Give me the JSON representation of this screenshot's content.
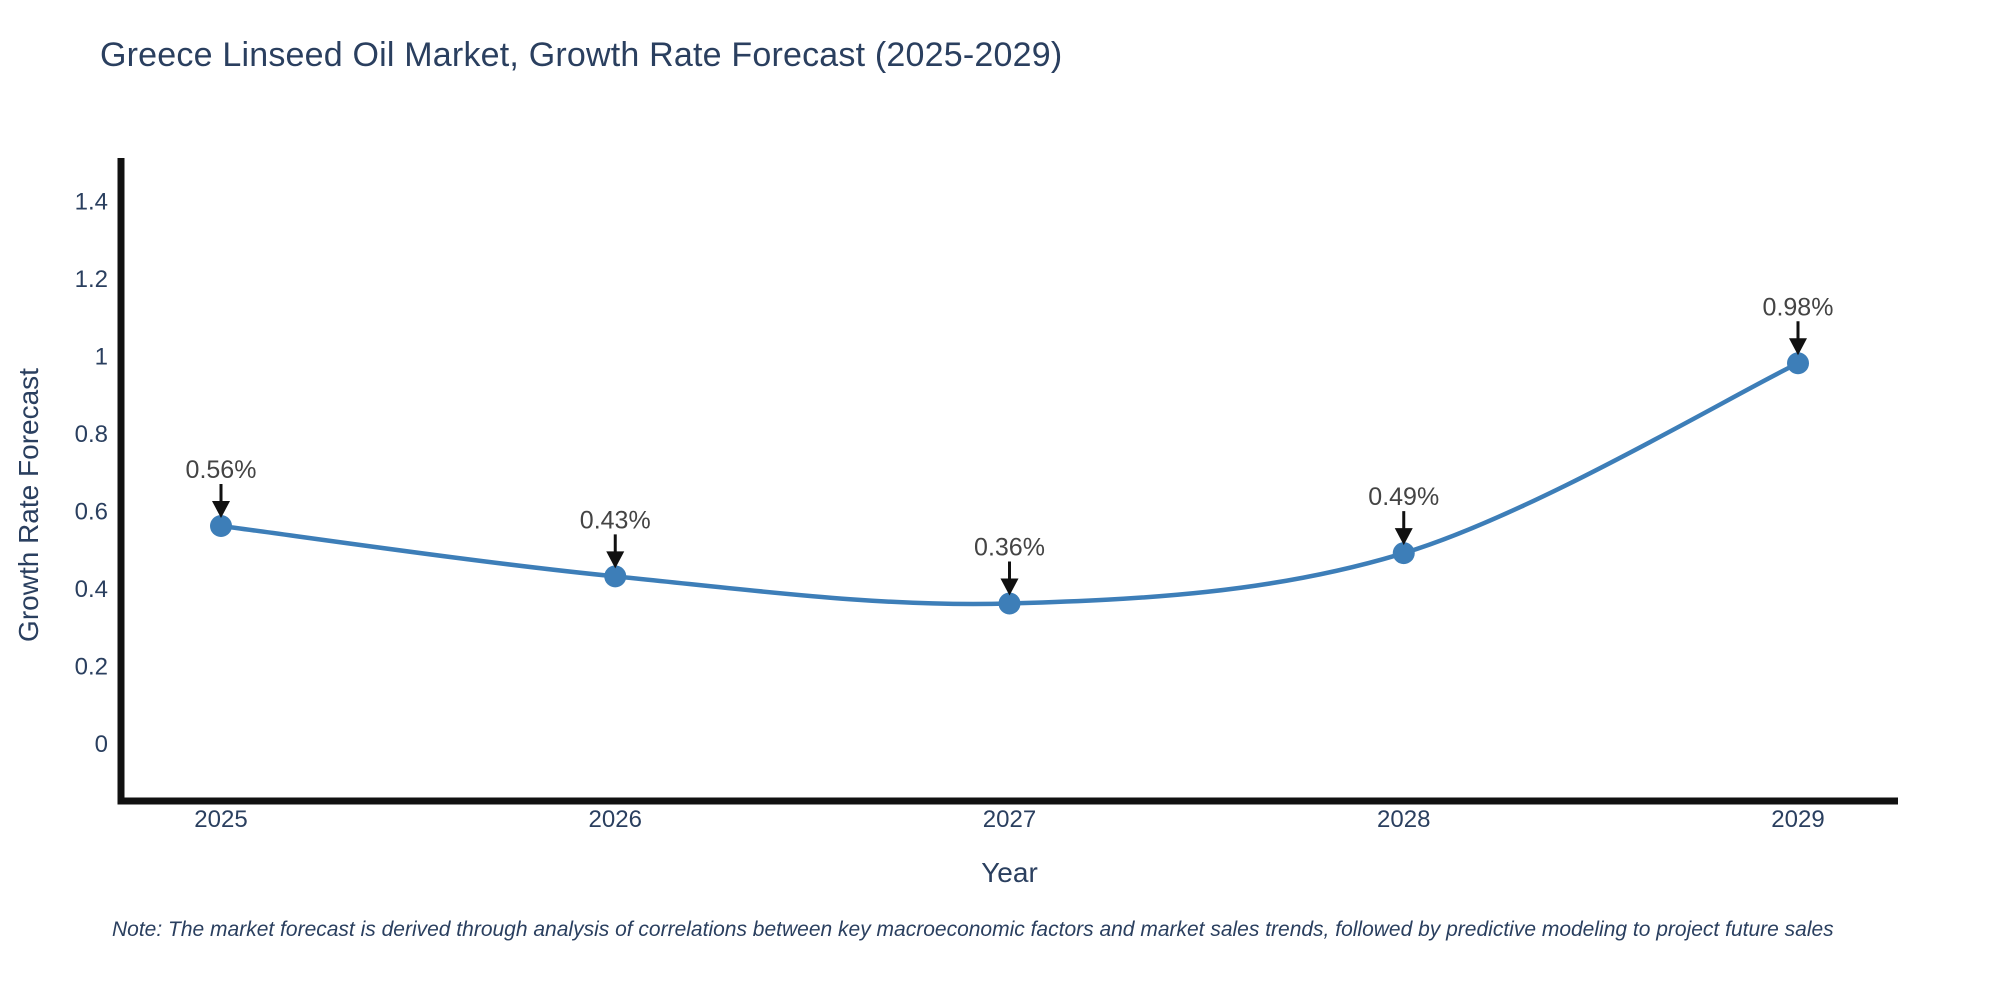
{
  "title": "Greece Linseed Oil Market, Growth Rate Forecast (2025-2029)",
  "note": "Note: The market forecast is derived through analysis of correlations between key macroeconomic factors and market sales trends, followed by predictive modeling to project future sales",
  "chart_data": {
    "type": "line",
    "line_shape": "spline",
    "categories": [
      "2025",
      "2026",
      "2027",
      "2028",
      "2029"
    ],
    "values": [
      0.56,
      0.43,
      0.36,
      0.49,
      0.98
    ],
    "point_labels": [
      "0.56%",
      "0.43%",
      "0.36%",
      "0.49%",
      "0.98%"
    ],
    "title": "Greece Linseed Oil Market, Growth Rate Forecast (2025-2029)",
    "xlabel": "Year",
    "ylabel": "Growth Rate Forecast",
    "ylim": [
      0,
      1.4
    ],
    "yticks": [
      0,
      0.2,
      0.4,
      0.6,
      0.8,
      1,
      1.2,
      1.4
    ],
    "ytick_labels": [
      "0",
      "0.2",
      "0.4",
      "0.6",
      "0.8",
      "1",
      "1.2",
      "1.4"
    ],
    "grid": false,
    "legend_position": "none",
    "markers": true,
    "annotations_arrows": true,
    "colors": {
      "line": "#3d7eb8",
      "marker": "#3d7eb8",
      "axis": "#111111",
      "tick_text": "#2a3f5f",
      "annotation_text": "#444444",
      "arrow": "#111111",
      "background": "#ffffff"
    }
  }
}
